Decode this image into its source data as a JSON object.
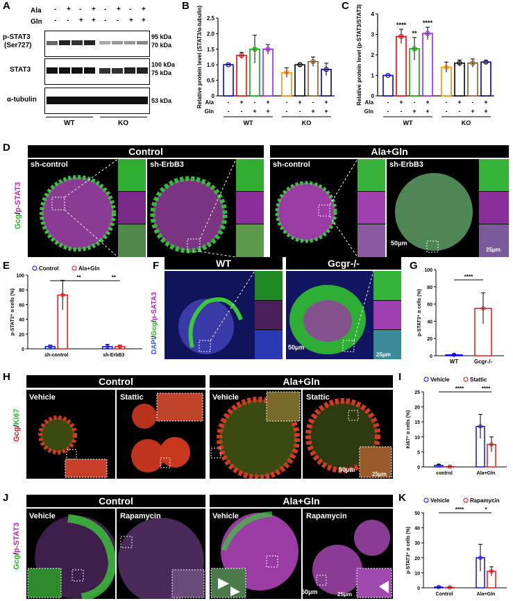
{
  "panels": {
    "A": "A",
    "B": "B",
    "C": "C",
    "D": "D",
    "E": "E",
    "F": "F",
    "G": "G",
    "H": "H",
    "I": "I",
    "J": "J",
    "K": "K"
  },
  "panelA": {
    "ala_label": "Ala",
    "gln_label": "Gln",
    "ala_signs": [
      "-",
      "+",
      "-",
      "+",
      "-",
      "+",
      "-",
      "+"
    ],
    "gln_signs": [
      "-",
      "-",
      "+",
      "+",
      "-",
      "-",
      "+",
      "+"
    ],
    "blot1_label_1": "p-STAT3",
    "blot1_label_2": "(Ser727)",
    "blot2_label": "STAT3",
    "blot3_label": "α-tubulin",
    "mw_95": "95 kDa",
    "mw_70": "70 kDa",
    "mw_100": "100 kDa",
    "mw_75": "75 kDa",
    "mw_53": "53 kDa",
    "wt": "WT",
    "ko": "KO"
  },
  "chart_data": [
    {
      "type": "bar",
      "panel": "B",
      "ylabel": "Relative protein level (STAT3/α-tubulin)",
      "ylim": [
        0,
        2.5
      ],
      "yticks": [
        "0",
        "0.5",
        "1.0",
        "1.5",
        "2.0",
        "2.5"
      ],
      "categories": [
        "WT -/-",
        "WT +/-",
        "WT -/+",
        "WT +/+",
        "KO -/-",
        "KO +/-",
        "KO -/+",
        "KO +/+"
      ],
      "values": [
        1.0,
        1.3,
        1.5,
        1.5,
        0.75,
        1.0,
        1.1,
        0.85
      ],
      "errors": [
        0.02,
        0.1,
        0.45,
        0.15,
        0.15,
        0.06,
        0.15,
        0.2
      ],
      "colors": [
        "#0000ff",
        "#ff0000",
        "#00b000",
        "#a020f0",
        "#ff8c00",
        "#000000",
        "#8b5a2b",
        "#00008b"
      ],
      "ala_signs": [
        "-",
        "+",
        "-",
        "+",
        "-",
        "+",
        "-",
        "+"
      ],
      "gln_signs": [
        "-",
        "-",
        "+",
        "+",
        "-",
        "-",
        "+",
        "+"
      ],
      "ala_label": "Ala",
      "gln_label": "Gln",
      "groups": [
        "WT",
        "KO"
      ]
    },
    {
      "type": "bar",
      "panel": "C",
      "ylabel": "Relative protein level (p-STAT3/STAT3)",
      "ylim": [
        0,
        4
      ],
      "yticks": [
        "0",
        "1",
        "2",
        "3",
        "4"
      ],
      "categories": [
        "WT -/-",
        "WT +/-",
        "WT -/+",
        "WT +/+",
        "KO -/-",
        "KO +/-",
        "KO -/+",
        "KO +/+"
      ],
      "values": [
        1.0,
        2.9,
        2.3,
        3.05,
        1.4,
        1.6,
        1.6,
        1.65
      ],
      "errors": [
        0.02,
        0.35,
        0.55,
        0.3,
        0.25,
        0.15,
        0.2,
        0.08
      ],
      "significance": [
        "",
        "****",
        "**",
        "****",
        "",
        "",
        "",
        ""
      ],
      "colors": [
        "#0000ff",
        "#ff0000",
        "#00b000",
        "#a020f0",
        "#ff8c00",
        "#000000",
        "#8b5a2b",
        "#00008b"
      ],
      "ala_signs": [
        "-",
        "+",
        "-",
        "+",
        "-",
        "+",
        "-",
        "+"
      ],
      "gln_signs": [
        "-",
        "-",
        "+",
        "+",
        "-",
        "-",
        "+",
        "+"
      ],
      "ala_label": "Ala",
      "gln_label": "Gln",
      "groups": [
        "WT",
        "KO"
      ]
    },
    {
      "type": "bar",
      "panel": "E",
      "ylabel": "p-STAT3⁺ α cells (%)",
      "ylim": [
        0,
        100
      ],
      "yticks": [
        "0",
        "20",
        "40",
        "60",
        "80",
        "100"
      ],
      "categories": [
        "sh-control",
        "sh-ErbB3"
      ],
      "series": [
        {
          "name": "Control",
          "values": [
            3,
            3
          ],
          "errors": [
            2,
            3
          ],
          "color": "#0000ff"
        },
        {
          "name": "Ala+Gln",
          "values": [
            73,
            3
          ],
          "errors": [
            20,
            2
          ],
          "color": "#ff0000"
        }
      ],
      "significance": [
        "**",
        "**"
      ]
    },
    {
      "type": "bar",
      "panel": "G",
      "ylabel": "p-STAT3⁺ α cells (%)",
      "ylim": [
        0,
        100
      ],
      "yticks": [
        "0",
        "20",
        "40",
        "60",
        "80",
        "100"
      ],
      "categories": [
        "WT",
        "Gcgr-/-"
      ],
      "values": [
        1,
        55
      ],
      "errors": [
        1,
        18
      ],
      "colors": [
        "#0000ff",
        "#ff0000"
      ],
      "significance": [
        "****"
      ]
    },
    {
      "type": "bar",
      "panel": "I",
      "ylabel": "Ki67⁺ α cells (%)",
      "ylim": [
        0,
        25
      ],
      "yticks": [
        "0",
        "5",
        "10",
        "15",
        "20",
        "25"
      ],
      "categories": [
        "control",
        "Ala+Gln"
      ],
      "series": [
        {
          "name": "Vehicle",
          "values": [
            0.5,
            13.5
          ],
          "errors": [
            0.3,
            4
          ],
          "color": "#0000ff"
        },
        {
          "name": "Stattic",
          "values": [
            0.1,
            7.5
          ],
          "errors": [
            0.1,
            2.5
          ],
          "color": "#ff0000"
        }
      ],
      "significance": [
        "****",
        "****"
      ]
    },
    {
      "type": "bar",
      "panel": "K",
      "ylabel": "p-STAT3⁺ α cells (%)",
      "ylim": [
        0,
        50
      ],
      "yticks": [
        "0",
        "10",
        "20",
        "30",
        "40",
        "50"
      ],
      "categories": [
        "Control",
        "Ala+Gln"
      ],
      "series": [
        {
          "name": "Vehicle",
          "values": [
            0.5,
            20
          ],
          "errors": [
            0.3,
            9
          ],
          "color": "#0000ff"
        },
        {
          "name": "Rapamycin",
          "values": [
            0.3,
            11
          ],
          "errors": [
            0.2,
            3
          ],
          "color": "#ff0000"
        }
      ],
      "significance": [
        "****",
        "*"
      ]
    }
  ],
  "panelD": {
    "control": "Control",
    "alagln": "Ala+Gln",
    "sh_control": "sh-control",
    "sh_erbb3": "sh-ErbB3",
    "side_gcg": "Gcg",
    "side_sep": "/",
    "side_pstat3": "p-STAT3",
    "scale50": "50μm",
    "scale25": "25μm"
  },
  "panelF": {
    "wt": "WT",
    "gcgr": "Gcgr-/-",
    "side_dapi": "DAPI",
    "side_sep1": "/",
    "side_gcg": "Gcg",
    "side_sep2": "/",
    "side_psata3": "p-SATA3",
    "scale50": "50μm",
    "scale25": "25μm"
  },
  "panelH": {
    "control": "Control",
    "alagln": "Ala+Gln",
    "vehicle": "Vehicle",
    "stattic": "Stattic",
    "side_gcg": "Gcg",
    "side_sep": "/",
    "side_ki67": "Ki67",
    "scale50": "50μm",
    "scale25": "25μm"
  },
  "panelJ": {
    "control": "Control",
    "alagln": "Ala+Gln",
    "vehicle": "Vehicle",
    "rapamycin": "Rapamycin",
    "side_gcg": "Gcg",
    "side_sep": "/",
    "side_pstat3": "p-STAT3",
    "scale50": "50μm",
    "scale25": "25μm"
  }
}
